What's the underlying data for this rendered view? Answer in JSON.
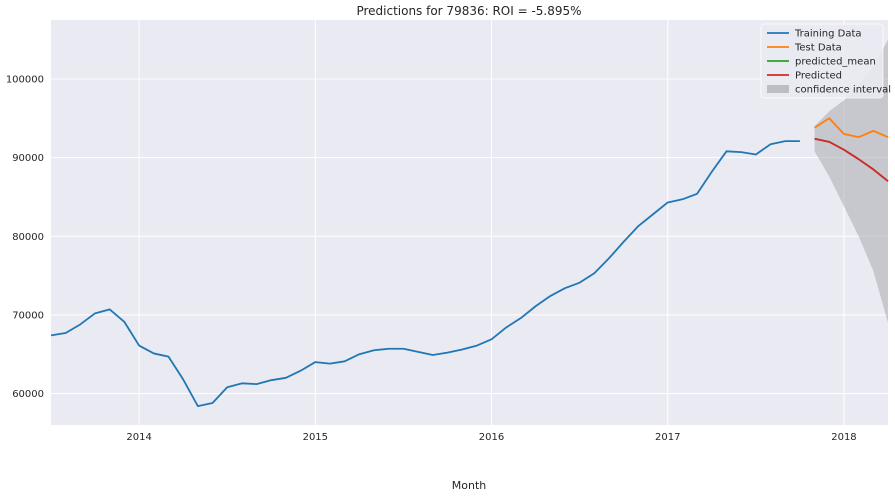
{
  "chart_data": {
    "type": "line",
    "title": "Predictions for 79836: ROI = -5.895%",
    "xlabel": "Month",
    "ylabel": "",
    "xlim": [
      "2013-07-01",
      "2018-04-01"
    ],
    "ylim": [
      56000,
      107500
    ],
    "x_ticks": [
      "2014",
      "2015",
      "2016",
      "2017",
      "2018"
    ],
    "y_ticks": [
      60000,
      70000,
      80000,
      90000,
      100000
    ],
    "grid": true,
    "background": "#eaeaf2",
    "legend_position": "top-right",
    "series": [
      {
        "name": "Training Data",
        "color": "#1f77b4",
        "x": [
          "2013-07",
          "2013-08",
          "2013-09",
          "2013-10",
          "2013-11",
          "2013-12",
          "2014-01",
          "2014-02",
          "2014-03",
          "2014-04",
          "2014-05",
          "2014-06",
          "2014-07",
          "2014-08",
          "2014-09",
          "2014-10",
          "2014-11",
          "2014-12",
          "2015-01",
          "2015-02",
          "2015-03",
          "2015-04",
          "2015-05",
          "2015-06",
          "2015-07",
          "2015-08",
          "2015-09",
          "2015-10",
          "2015-11",
          "2015-12",
          "2016-01",
          "2016-02",
          "2016-03",
          "2016-04",
          "2016-05",
          "2016-06",
          "2016-07",
          "2016-08",
          "2016-09",
          "2016-10",
          "2016-11",
          "2016-12",
          "2017-01",
          "2017-02",
          "2017-03",
          "2017-04",
          "2017-05",
          "2017-06",
          "2017-07",
          "2017-08",
          "2017-09",
          "2017-10"
        ],
        "values": [
          67400,
          67700,
          68800,
          70200,
          70700,
          69100,
          66100,
          65100,
          64700,
          61800,
          58400,
          58800,
          60800,
          61300,
          61200,
          61700,
          62000,
          62900,
          64000,
          63800,
          64100,
          65000,
          65500,
          65700,
          65700,
          65300,
          64900,
          65200,
          65600,
          66100,
          66900,
          68400,
          69600,
          71100,
          72400,
          73400,
          74100,
          75300,
          77200,
          79300,
          81300,
          82800,
          84300,
          84700,
          85400,
          88200,
          90800,
          90700,
          90400,
          91700,
          92100,
          92100
        ]
      },
      {
        "name": "Test Data",
        "color": "#ff7f0e",
        "x": [
          "2017-11",
          "2017-12",
          "2018-01",
          "2018-02",
          "2018-03",
          "2018-04"
        ],
        "values": [
          93800,
          95000,
          93000,
          92600,
          93400,
          92600
        ]
      },
      {
        "name": "predicted_mean",
        "color": "#2ca02c",
        "x": [
          "2017-11",
          "2017-12",
          "2018-01",
          "2018-02",
          "2018-03",
          "2018-04"
        ],
        "values": [
          92400,
          92000,
          91000,
          89800,
          88500,
          87000
        ]
      },
      {
        "name": "Predicted",
        "color": "#d62728",
        "x": [
          "2017-11",
          "2017-12",
          "2018-01",
          "2018-02",
          "2018-03",
          "2018-04"
        ],
        "values": [
          92400,
          92000,
          91000,
          89800,
          88500,
          87000
        ]
      }
    ],
    "confidence_interval": {
      "name": "confidence interval",
      "color": "#a9a9b0",
      "x": [
        "2017-11",
        "2017-12",
        "2018-01",
        "2018-02",
        "2018-03",
        "2018-04"
      ],
      "lower": [
        90800,
        87600,
        83800,
        80000,
        75600,
        69000
      ],
      "upper": [
        94000,
        95900,
        97300,
        99200,
        101500,
        105000
      ]
    }
  }
}
